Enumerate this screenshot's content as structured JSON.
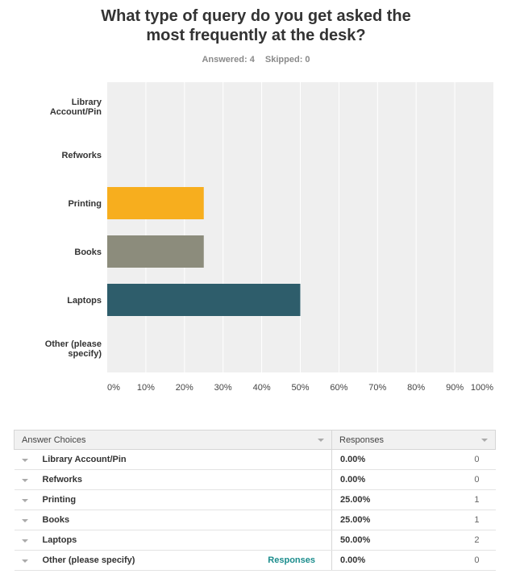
{
  "question": {
    "title_line1": "What type of query do you get asked the",
    "title_line2": "most frequently at the desk?"
  },
  "stats": {
    "answered": "Answered: 4",
    "skipped": "Skipped: 0"
  },
  "chart_data": {
    "type": "bar",
    "orientation": "horizontal",
    "categories": [
      "Library Account/Pin",
      "Refworks",
      "Printing",
      "Books",
      "Laptops",
      "Other (please specify)"
    ],
    "category_labels": [
      [
        "Library",
        "Account/Pin"
      ],
      [
        "Refworks"
      ],
      [
        "Printing"
      ],
      [
        "Books"
      ],
      [
        "Laptops"
      ],
      [
        "Other (please",
        "specify)"
      ]
    ],
    "values": [
      0,
      0,
      25,
      25,
      50,
      0
    ],
    "bar_colors": [
      "#c2d0d8",
      "#cfa5c4",
      "#f7ae1e",
      "#8c8c7c",
      "#2e5d6b",
      "#9fb36c"
    ],
    "xlim": [
      0,
      100
    ],
    "xticks": [
      "0%",
      "10%",
      "20%",
      "30%",
      "40%",
      "50%",
      "60%",
      "70%",
      "80%",
      "90%",
      "100%"
    ],
    "grid": true,
    "plot_background": "#efefef",
    "grid_color": "#ffffff"
  },
  "table": {
    "header": {
      "choices": "Answer Choices",
      "responses": "Responses"
    },
    "rows": [
      {
        "label": "Library Account/Pin",
        "percent": "0.00%",
        "count": "0"
      },
      {
        "label": "Refworks",
        "percent": "0.00%",
        "count": "0"
      },
      {
        "label": "Printing",
        "percent": "25.00%",
        "count": "1"
      },
      {
        "label": "Books",
        "percent": "25.00%",
        "count": "1"
      },
      {
        "label": "Laptops",
        "percent": "50.00%",
        "count": "2"
      },
      {
        "label": "Other (please specify)",
        "percent": "0.00%",
        "count": "0",
        "link": "Responses"
      }
    ]
  }
}
